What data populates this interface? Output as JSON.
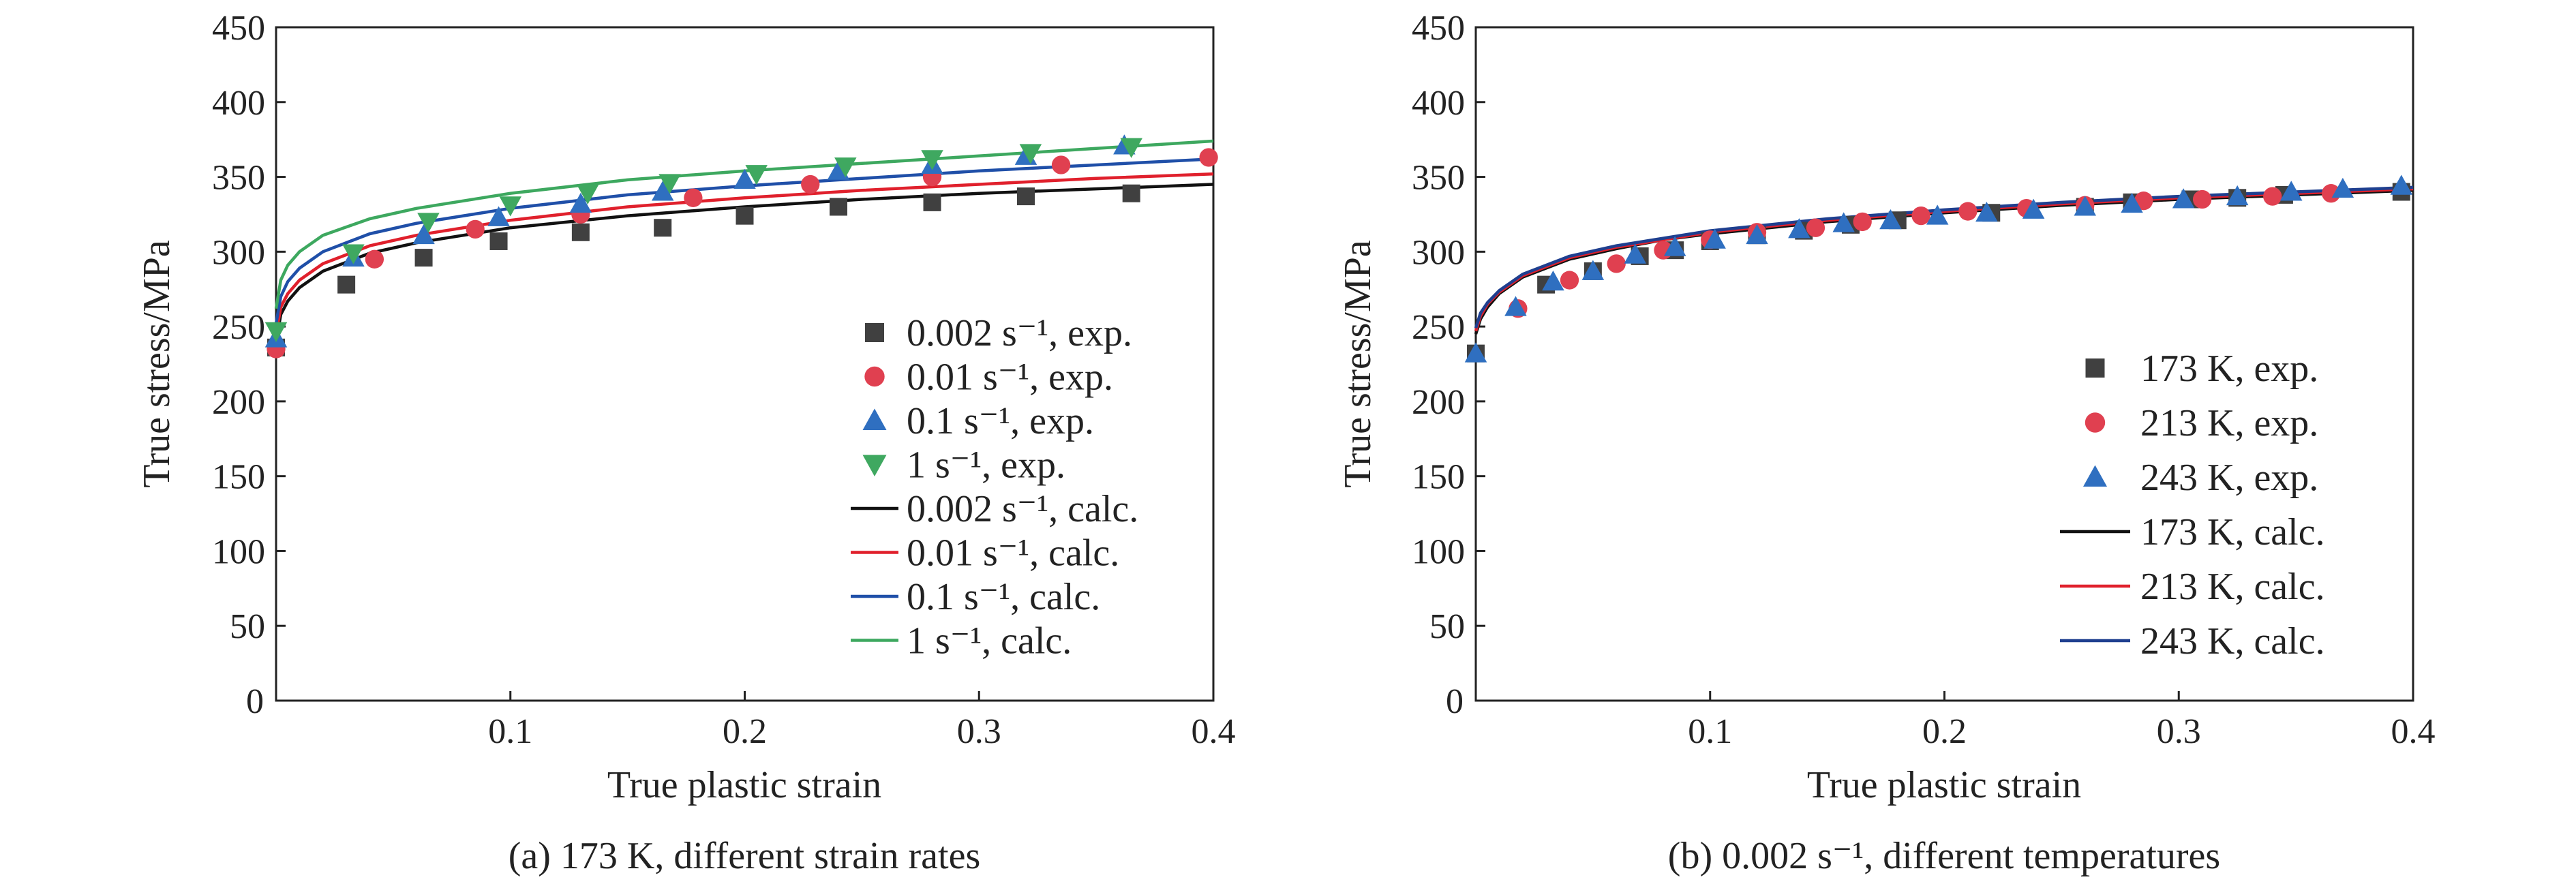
{
  "figure": {
    "captions": [
      {
        "id": "a",
        "text": "(a) 173 K, different strain rates"
      },
      {
        "id": "b",
        "text": "(b) 0.002 s⁻¹, different temperatures"
      }
    ]
  },
  "chart_data": [
    {
      "id": "a",
      "type": "scatter",
      "xlabel": "True plastic strain",
      "ylabel": "True stress/MPa",
      "xlim": [
        0,
        0.4
      ],
      "ylim": [
        0,
        450
      ],
      "xticks": [
        "0.1",
        "0.2",
        "0.3",
        "0.4"
      ],
      "yticks": [
        "50",
        "100",
        "150",
        "200",
        "250",
        "300",
        "350",
        "400",
        "450"
      ],
      "origin_label": "0",
      "grid": false,
      "legend_position": "lower-right",
      "series": [
        {
          "name": "0.002 s⁻¹, exp.",
          "kind": "points",
          "marker": "square",
          "color": "#404040",
          "x": [
            0.0,
            0.03,
            0.063,
            0.095,
            0.13,
            0.165,
            0.2,
            0.24,
            0.28,
            0.32,
            0.365
          ],
          "y": [
            236,
            278,
            296,
            307,
            313,
            316,
            324,
            330,
            333,
            337,
            339
          ]
        },
        {
          "name": "0.01 s⁻¹, exp.",
          "kind": "points",
          "marker": "circle",
          "color": "#e04050",
          "x": [
            0.0,
            0.042,
            0.085,
            0.13,
            0.178,
            0.228,
            0.28,
            0.335,
            0.398
          ],
          "y": [
            235,
            295,
            315,
            325,
            336,
            345,
            350,
            358,
            363
          ]
        },
        {
          "name": "0.1 s⁻¹, exp.",
          "kind": "points",
          "marker": "triangle-up",
          "color": "#2f6fc0",
          "x": [
            0.0,
            0.033,
            0.063,
            0.095,
            0.13,
            0.165,
            0.2,
            0.24,
            0.28,
            0.32,
            0.362
          ],
          "y": [
            242,
            296,
            311,
            323,
            332,
            340,
            348,
            354,
            358,
            364,
            371
          ]
        },
        {
          "name": "1 s⁻¹, exp.",
          "kind": "points",
          "marker": "triangle-down",
          "color": "#3fa860",
          "x": [
            0.0,
            0.033,
            0.065,
            0.1,
            0.133,
            0.168,
            0.205,
            0.243,
            0.28,
            0.322,
            0.365
          ],
          "y": [
            247,
            299,
            320,
            331,
            339,
            346,
            352,
            357,
            362,
            366,
            370
          ]
        },
        {
          "name": "0.002 s⁻¹, calc.",
          "kind": "line",
          "color": "#111111",
          "x": [
            0,
            0.002,
            0.005,
            0.01,
            0.02,
            0.04,
            0.06,
            0.08,
            0.1,
            0.15,
            0.2,
            0.25,
            0.3,
            0.35,
            0.4
          ],
          "y": [
            240,
            258,
            267,
            276,
            287,
            299,
            306,
            311,
            316,
            324,
            330,
            335,
            339,
            342,
            345
          ]
        },
        {
          "name": "0.01 s⁻¹, calc.",
          "kind": "line",
          "color": "#e0202c",
          "x": [
            0,
            0.002,
            0.005,
            0.01,
            0.02,
            0.04,
            0.06,
            0.08,
            0.1,
            0.15,
            0.2,
            0.25,
            0.3,
            0.35,
            0.4
          ],
          "y": [
            245,
            263,
            272,
            281,
            292,
            304,
            311,
            316,
            321,
            330,
            336,
            341,
            345,
            349,
            352
          ]
        },
        {
          "name": "0.1 s⁻¹, calc.",
          "kind": "line",
          "color": "#1f4fa8",
          "x": [
            0,
            0.002,
            0.005,
            0.01,
            0.02,
            0.04,
            0.06,
            0.08,
            0.1,
            0.15,
            0.2,
            0.25,
            0.3,
            0.35,
            0.4
          ],
          "y": [
            252,
            270,
            280,
            289,
            300,
            312,
            319,
            324,
            329,
            338,
            344,
            349,
            354,
            358,
            362
          ]
        },
        {
          "name": "1 s⁻¹, calc.",
          "kind": "line",
          "color": "#3da85f",
          "x": [
            0,
            0.002,
            0.005,
            0.01,
            0.02,
            0.04,
            0.06,
            0.08,
            0.1,
            0.15,
            0.2,
            0.25,
            0.3,
            0.35,
            0.4
          ],
          "y": [
            262,
            281,
            291,
            300,
            311,
            322,
            329,
            334,
            339,
            348,
            354,
            359,
            364,
            369,
            374
          ]
        }
      ]
    },
    {
      "id": "b",
      "type": "scatter",
      "xlabel": "True plastic strain",
      "ylabel": "True stress/MPa",
      "xlim": [
        0,
        0.4
      ],
      "ylim": [
        0,
        450
      ],
      "xticks": [
        "0.1",
        "0.2",
        "0.3",
        "0.4"
      ],
      "yticks": [
        "50",
        "100",
        "150",
        "200",
        "250",
        "300",
        "350",
        "400",
        "450"
      ],
      "origin_label": "0",
      "grid": false,
      "legend_position": "lower-right",
      "series": [
        {
          "name": "173 K, exp.",
          "kind": "points",
          "marker": "square",
          "color": "#404040",
          "x": [
            0.0,
            0.03,
            0.05,
            0.07,
            0.085,
            0.1,
            0.12,
            0.14,
            0.16,
            0.18,
            0.22,
            0.26,
            0.28,
            0.305,
            0.325,
            0.345,
            0.395
          ],
          "y": [
            232,
            278,
            287,
            297,
            301,
            307,
            311,
            314,
            318,
            321,
            326,
            330,
            333,
            335,
            336,
            338,
            340
          ]
        },
        {
          "name": "213 K, exp.",
          "kind": "points",
          "marker": "circle",
          "color": "#e04050",
          "x": [
            0.018,
            0.04,
            0.06,
            0.08,
            0.1,
            0.12,
            0.145,
            0.165,
            0.19,
            0.21,
            0.235,
            0.26,
            0.285,
            0.31,
            0.34,
            0.365
          ],
          "y": [
            262,
            281,
            292,
            301,
            308,
            313,
            316,
            320,
            324,
            327,
            329,
            331,
            334,
            335,
            337,
            339
          ]
        },
        {
          "name": "243 K, exp.",
          "kind": "points",
          "marker": "triangle-up",
          "color": "#2f6fc0",
          "x": [
            0.0,
            0.017,
            0.033,
            0.05,
            0.068,
            0.085,
            0.102,
            0.12,
            0.138,
            0.157,
            0.177,
            0.197,
            0.218,
            0.238,
            0.26,
            0.28,
            0.302,
            0.325,
            0.348,
            0.37,
            0.395
          ],
          "y": [
            232,
            263,
            280,
            287,
            298,
            303,
            308,
            311,
            315,
            319,
            321,
            324,
            326,
            328,
            330,
            332,
            335,
            337,
            340,
            342,
            344
          ]
        },
        {
          "name": "173 K, calc.",
          "kind": "line",
          "color": "#111111",
          "x": [
            0,
            0.002,
            0.005,
            0.01,
            0.02,
            0.04,
            0.06,
            0.08,
            0.1,
            0.15,
            0.2,
            0.25,
            0.3,
            0.35,
            0.4
          ],
          "y": [
            245,
            255,
            263,
            272,
            283,
            295,
            302,
            308,
            312,
            320,
            326,
            331,
            335,
            338,
            341
          ]
        },
        {
          "name": "213 K, calc.",
          "kind": "line",
          "color": "#e0202c",
          "x": [
            0,
            0.002,
            0.005,
            0.01,
            0.02,
            0.04,
            0.06,
            0.08,
            0.1,
            0.15,
            0.2,
            0.25,
            0.3,
            0.35,
            0.4
          ],
          "y": [
            247,
            257,
            265,
            273,
            284,
            296,
            303,
            308,
            313,
            321,
            327,
            332,
            336,
            339,
            342
          ]
        },
        {
          "name": "243 K, calc.",
          "kind": "line",
          "color": "#1f3f8f",
          "x": [
            0,
            0.002,
            0.005,
            0.01,
            0.02,
            0.04,
            0.06,
            0.08,
            0.1,
            0.15,
            0.2,
            0.25,
            0.3,
            0.35,
            0.4
          ],
          "y": [
            249,
            259,
            266,
            274,
            285,
            297,
            304,
            309,
            314,
            322,
            328,
            333,
            337,
            340,
            343
          ]
        }
      ]
    }
  ]
}
